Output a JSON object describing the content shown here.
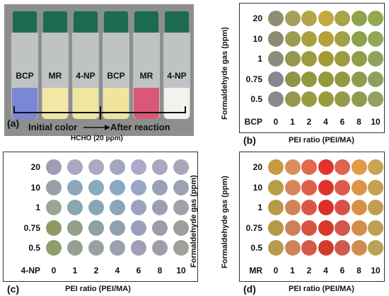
{
  "panel_a": {
    "label": "(a)",
    "vials": [
      {
        "label": "BCP",
        "powder": "#7b86d6"
      },
      {
        "label": "MR",
        "powder": "#f3e7a6"
      },
      {
        "label": "4-NP",
        "powder": "#efe6a0"
      },
      {
        "label": "BCP",
        "powder": "#f0e59a"
      },
      {
        "label": "MR",
        "powder": "#d9587a"
      },
      {
        "label": "4-NP",
        "powder": "#f4f2ec"
      }
    ],
    "initial_label": "Initial color",
    "after_label": "After reaction",
    "gas_label": "HCHO (20 ppm)"
  },
  "y_axis_title": "Formaldehyde gas (ppm)",
  "x_axis_title": "PEI ratio (PEI/MA)",
  "y_ticks": [
    "20",
    "10",
    "1",
    "0.75",
    "0.5"
  ],
  "x_ticks": [
    "0",
    "1",
    "2",
    "4",
    "6",
    "8",
    "10"
  ],
  "panels": [
    {
      "label": "(b)",
      "dye": "BCP",
      "colors": [
        [
          "#8e8e72",
          "#a3a05a",
          "#b2a648",
          "#c2aa3e",
          "#a6a34a",
          "#8ea34a",
          "#94a84e"
        ],
        [
          "#8a8a72",
          "#9d9b50",
          "#a9a040",
          "#b3a23a",
          "#a29f44",
          "#8da04a",
          "#92a65a"
        ],
        [
          "#8c8d78",
          "#959750",
          "#9c9c3e",
          "#a29c36",
          "#9b9c42",
          "#8f9e48",
          "#8fa25a"
        ],
        [
          "#858690",
          "#8e9448",
          "#909a3c",
          "#95993a",
          "#929b42",
          "#8b9d4e",
          "#8fa05e"
        ],
        [
          "#88888e",
          "#939750",
          "#979c42",
          "#9a9b3e",
          "#959c48",
          "#8c9d50",
          "#92a064"
        ]
      ]
    },
    {
      "label": "(c)",
      "dye": "4-NP",
      "colors": [
        [
          "#a29db2",
          "#a8a8c0",
          "#a9aac4",
          "#a4a6c0",
          "#acaac8",
          "#a8a8c0",
          "#a9a6bc"
        ],
        [
          "#9aa0a8",
          "#8ca8b8",
          "#88aac0",
          "#8aa8c0",
          "#9aa6c4",
          "#98a2b4",
          "#9ca2b0"
        ],
        [
          "#9aa596",
          "#8aa6ae",
          "#88a6b4",
          "#8da5b8",
          "#9ba2c0",
          "#9a9fb2",
          "#a0a2ac"
        ],
        [
          "#8d9a64",
          "#95a08c",
          "#8da1a2",
          "#8ea2ae",
          "#9c9fbc",
          "#999eaa",
          "#9ba09a"
        ],
        [
          "#909c6a",
          "#96a090",
          "#9aa0a2",
          "#9aa0ac",
          "#a09eb8",
          "#9c9ea8",
          "#9ea29c"
        ]
      ]
    },
    {
      "label": "(d)",
      "dye": "MR",
      "colors": [
        [
          "#c79a44",
          "#d98f5c",
          "#e2684e",
          "#e0342c",
          "#e06250",
          "#e29a48",
          "#c9a454"
        ],
        [
          "#b99c46",
          "#d6875a",
          "#df5e48",
          "#e0302a",
          "#de5a4a",
          "#de9446",
          "#c4a252"
        ],
        [
          "#b69a48",
          "#d28458",
          "#dc5644",
          "#dd2e28",
          "#d9524a",
          "#d89048",
          "#c09e52"
        ],
        [
          "#b69848",
          "#cf8058",
          "#d85244",
          "#d83828",
          "#d4564c",
          "#d48e4a",
          "#bea052"
        ],
        [
          "#b89a4c",
          "#cc8458",
          "#d45a48",
          "#d43a2c",
          "#d05a4e",
          "#d08e4c",
          "#bca256"
        ]
      ]
    }
  ]
}
